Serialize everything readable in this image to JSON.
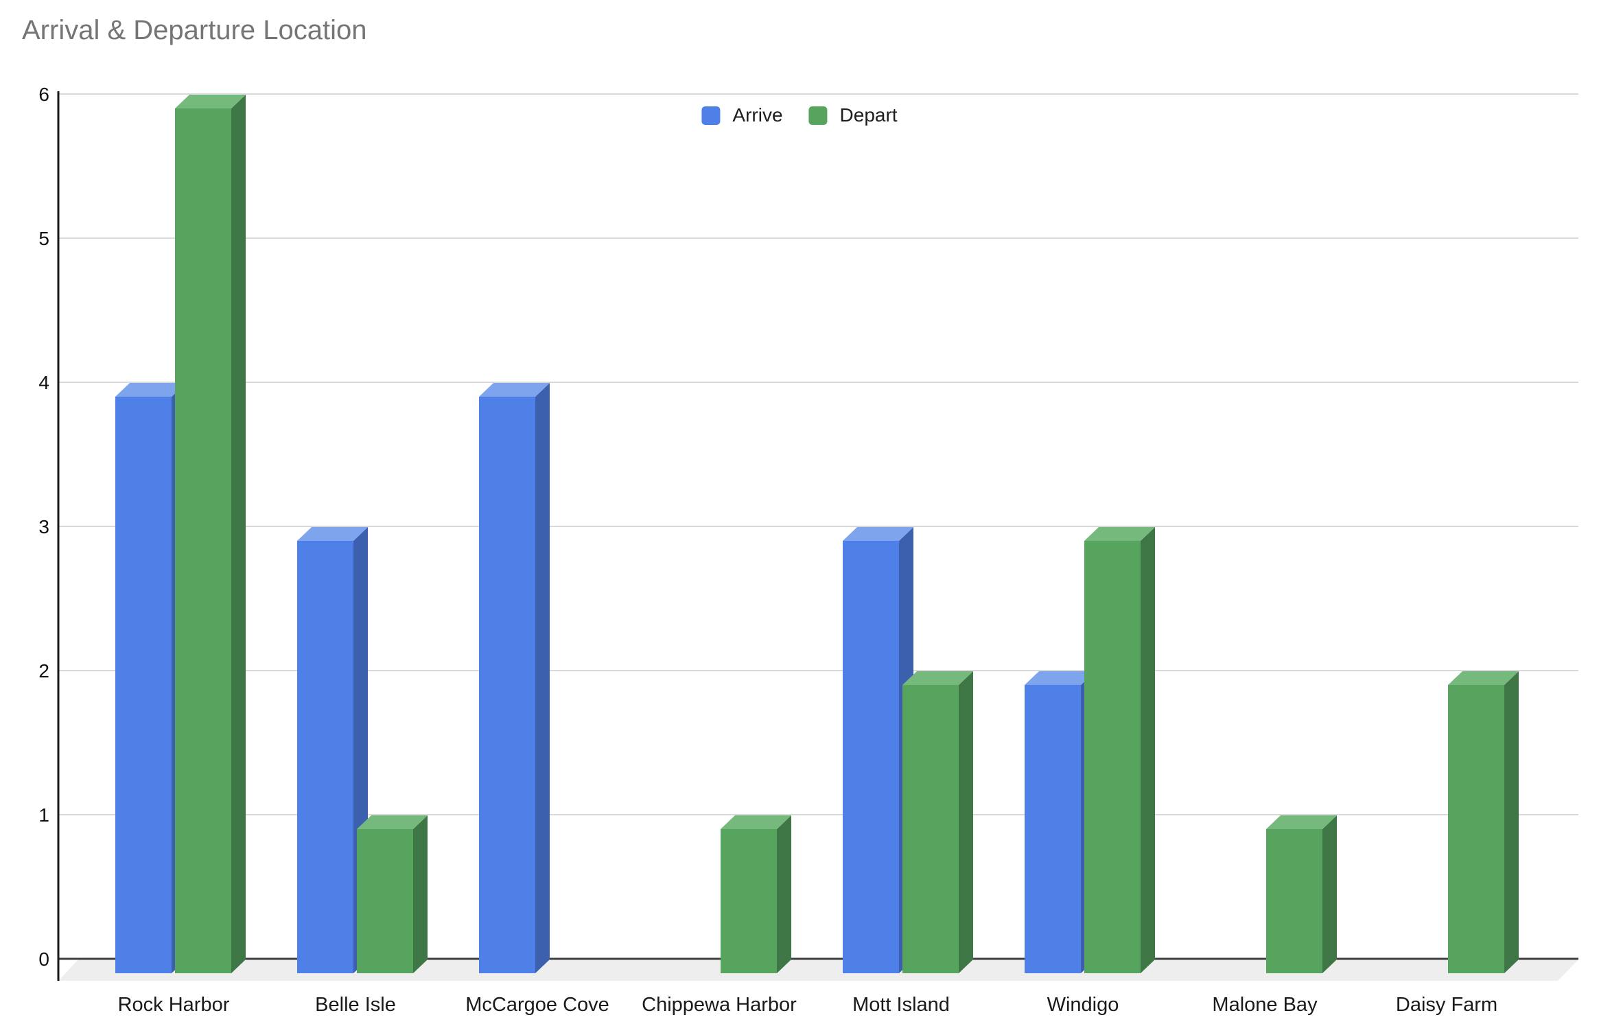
{
  "title": "Arrival & Departure Location",
  "chart_data": {
    "type": "bar",
    "style": "3d-column-grouped",
    "title": "Arrival & Departure Location",
    "categories": [
      "Rock Harbor",
      "Belle Isle",
      "McCargoe Cove",
      "Chippewa Harbor",
      "Mott Island",
      "Windigo",
      "Malone Bay",
      "Daisy Farm"
    ],
    "series": [
      {
        "name": "Arrive",
        "values": [
          4,
          3,
          4,
          0,
          3,
          2,
          0,
          0
        ],
        "color": "#4e80e8",
        "color_top": "#7fa4ee",
        "color_side": "#3c5fae"
      },
      {
        "name": "Depart",
        "values": [
          6,
          1,
          0,
          1,
          2,
          3,
          1,
          2
        ],
        "color": "#57a45e",
        "color_top": "#76b97d",
        "color_side": "#3e7745"
      }
    ],
    "xlabel": "",
    "ylabel": "",
    "ylim": [
      0,
      6
    ],
    "yticks": [
      0,
      1,
      2,
      3,
      4,
      5,
      6
    ],
    "grid": true,
    "legend_position": "top-center",
    "colors": {
      "grid": "#d9d9d9",
      "baseline": "#404040",
      "axis": "#1a1a1a",
      "floor": "#eeeeee",
      "title": "#757575",
      "tick_label": "#111111",
      "category_label": "#1a1a1a",
      "background": "#ffffff"
    }
  }
}
